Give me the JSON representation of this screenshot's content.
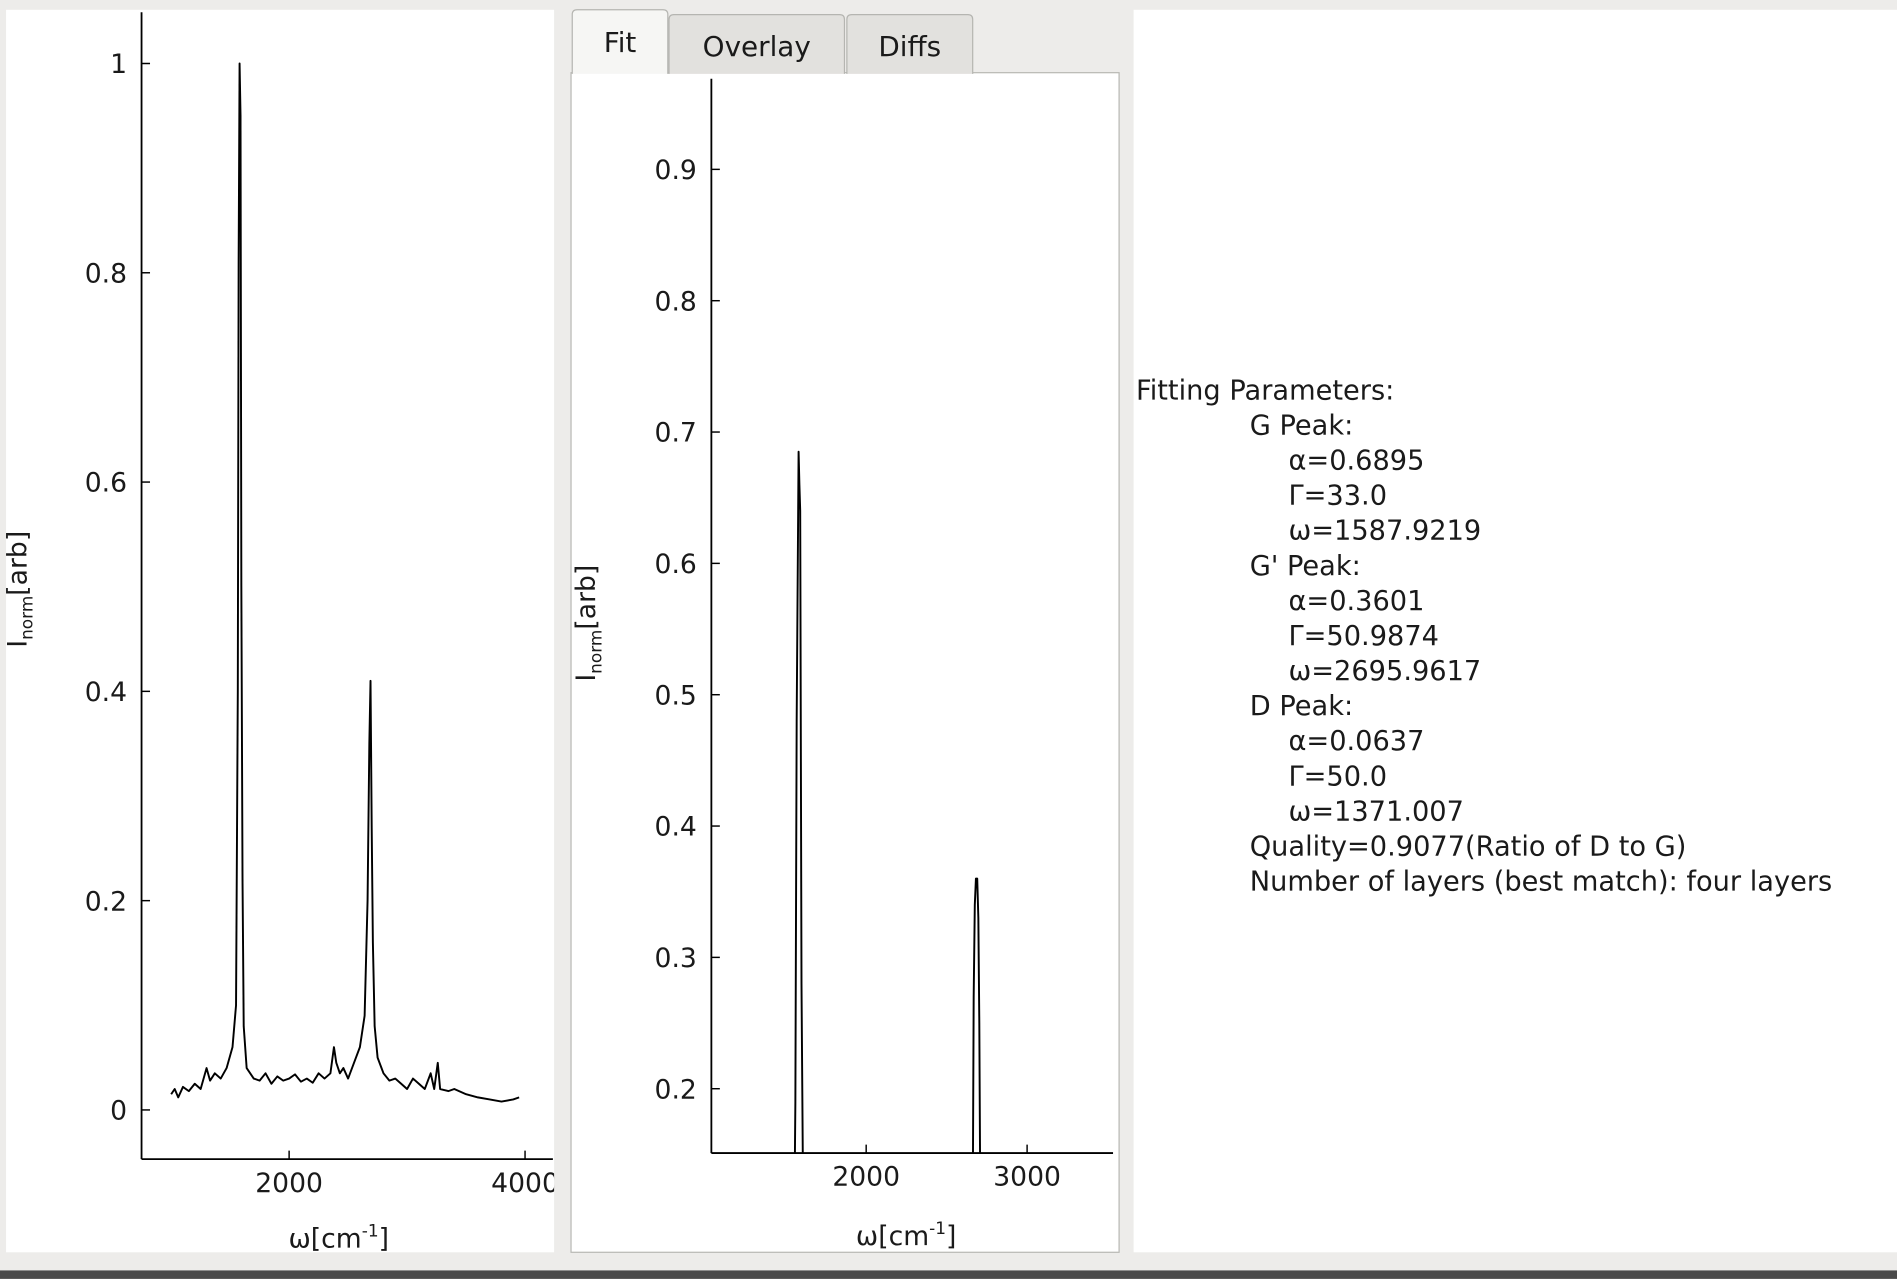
{
  "tabs": [
    "Fit",
    "Overlay",
    "Diffs"
  ],
  "active_tab": 0,
  "chart_data": [
    {
      "type": "line",
      "color": "#000000",
      "xlabel": {
        "text": "ω[cm",
        "sup": "-1",
        "suffix": "]"
      },
      "ylabel": {
        "text": "I",
        "sub": "norm",
        "suffix": "[arb]"
      },
      "xlim": [
        749,
        4236
      ],
      "ylim": [
        -0.047,
        1.049
      ],
      "xticks": [
        2000,
        4000
      ],
      "yticks": [
        0,
        0.2,
        0.4,
        0.6,
        0.8,
        1
      ],
      "x": [
        1000,
        1030,
        1060,
        1100,
        1150,
        1200,
        1250,
        1300,
        1330,
        1370,
        1420,
        1470,
        1520,
        1550,
        1565,
        1572,
        1580,
        1588,
        1595,
        1605,
        1615,
        1640,
        1700,
        1750,
        1800,
        1850,
        1900,
        1950,
        2000,
        2050,
        2100,
        2150,
        2200,
        2250,
        2300,
        2350,
        2380,
        2400,
        2430,
        2460,
        2500,
        2550,
        2600,
        2640,
        2665,
        2680,
        2690,
        2700,
        2710,
        2725,
        2750,
        2800,
        2850,
        2900,
        2950,
        3000,
        3050,
        3100,
        3150,
        3200,
        3230,
        3260,
        3280,
        3350,
        3400,
        3500,
        3600,
        3700,
        3800,
        3900,
        3950
      ],
      "y": [
        0.015,
        0.02,
        0.012,
        0.022,
        0.018,
        0.025,
        0.02,
        0.04,
        0.028,
        0.035,
        0.03,
        0.04,
        0.06,
        0.1,
        0.4,
        0.81,
        1.0,
        0.95,
        0.5,
        0.22,
        0.08,
        0.04,
        0.03,
        0.028,
        0.035,
        0.025,
        0.032,
        0.028,
        0.03,
        0.034,
        0.027,
        0.03,
        0.026,
        0.035,
        0.03,
        0.035,
        0.06,
        0.045,
        0.035,
        0.04,
        0.03,
        0.045,
        0.06,
        0.09,
        0.2,
        0.35,
        0.41,
        0.27,
        0.16,
        0.08,
        0.05,
        0.035,
        0.028,
        0.03,
        0.025,
        0.02,
        0.03,
        0.025,
        0.02,
        0.035,
        0.02,
        0.045,
        0.02,
        0.018,
        0.02,
        0.015,
        0.012,
        0.01,
        0.008,
        0.01,
        0.012
      ]
    },
    {
      "type": "line",
      "color": "#000000",
      "xlabel": {
        "text": "ω[cm",
        "sup": "-1",
        "suffix": "]"
      },
      "ylabel": {
        "text": "I",
        "sub": "norm",
        "suffix": "[arb]"
      },
      "xlim": [
        1038,
        3534
      ],
      "ylim": [
        0.151,
        0.969
      ],
      "xticks": [
        2000,
        3000
      ],
      "yticks": [
        0.2,
        0.3,
        0.4,
        0.5,
        0.6,
        0.7,
        0.8,
        0.9
      ],
      "x": [
        1550,
        1560,
        1568,
        1575,
        1580,
        1585,
        1590,
        1598,
        1606,
        1615,
        2660,
        2668,
        2675,
        2682,
        2690,
        2697,
        2703,
        2712
      ],
      "y": [
        0.05,
        0.19,
        0.48,
        0.6,
        0.685,
        0.66,
        0.64,
        0.28,
        0.15,
        0.05,
        0.05,
        0.27,
        0.34,
        0.36,
        0.36,
        0.33,
        0.25,
        0.05
      ]
    }
  ],
  "fit_results": {
    "title": "Fitting Parameters:",
    "peaks": [
      {
        "name": "G Peak:",
        "params": [
          "α=0.6895",
          "Γ=33.0",
          "ω=1587.9219"
        ]
      },
      {
        "name": "G' Peak:",
        "params": [
          "α=0.3601",
          "Γ=50.9874",
          "ω=2695.9617"
        ]
      },
      {
        "name": "D Peak:",
        "params": [
          "α=0.0637",
          "Γ=50.0",
          "ω=1371.007"
        ]
      }
    ],
    "quality": "Quality=0.9077(Ratio of D to G)",
    "layers": "Number of layers (best match): four layers"
  }
}
